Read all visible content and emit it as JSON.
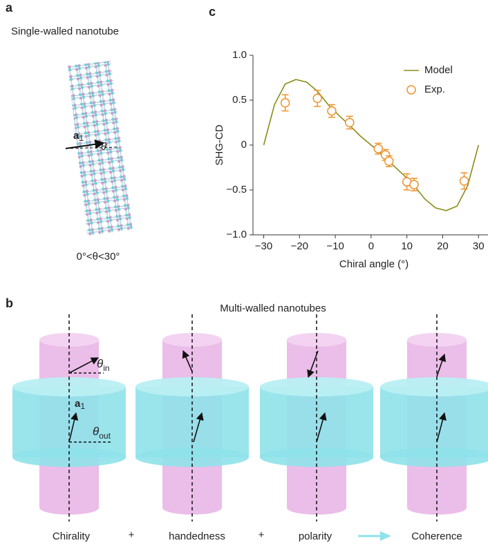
{
  "panel_a": {
    "label": "a",
    "title": "Single-walled nanotube",
    "vector": "a",
    "vector_sub": "1",
    "angle": "θ",
    "range": "0°<θ<30°"
  },
  "panel_b": {
    "label": "b",
    "title": "Multi-walled nanotubes",
    "vector": "a",
    "vector_sub": "1",
    "angle": "θ",
    "angle_in_sub": "in",
    "angle_out_sub": "out",
    "terms": [
      "Chirality",
      "+",
      "handedness",
      "+",
      "polarity",
      "Coherence"
    ]
  },
  "chart_data": {
    "type": "line",
    "panel_label": "c",
    "xlabel": "Chiral angle (°)",
    "ylabel": "SHG-CD",
    "xlim": [
      -33,
      31.5
    ],
    "ylim": [
      -1,
      1
    ],
    "xticks": [
      {
        "value": -30,
        "label": "−30"
      },
      {
        "value": -20,
        "label": "−20"
      },
      {
        "value": -10,
        "label": "−10"
      },
      0,
      10,
      20,
      30
    ],
    "yticks": [
      {
        "value": 1,
        "label": "1.0"
      },
      {
        "value": 0.5,
        "label": "0.5"
      },
      0,
      {
        "value": -0.5,
        "label": "−0.5"
      },
      {
        "value": -1,
        "label": "−1.0"
      }
    ],
    "legend": "upper right",
    "series": [
      {
        "name": "Model",
        "type": "line",
        "color": "#8b8b17",
        "x": [
          -30,
          -27,
          -24,
          -21,
          -18,
          -15,
          -12,
          -9,
          -6,
          -3,
          0,
          3,
          6,
          9,
          12,
          15,
          18,
          21,
          24,
          27,
          30
        ],
        "values": [
          0,
          0.45,
          0.68,
          0.73,
          0.7,
          0.6,
          0.45,
          0.33,
          0.22,
          0.1,
          0,
          -0.1,
          -0.22,
          -0.33,
          -0.45,
          -0.6,
          -0.7,
          -0.73,
          -0.68,
          -0.45,
          0
        ]
      },
      {
        "name": "Exp.",
        "type": "scatter",
        "color": "#f0922a",
        "x": [
          -24,
          -15,
          -11,
          -6,
          2,
          4,
          5,
          10,
          12,
          26
        ],
        "values": [
          0.47,
          0.52,
          0.38,
          0.25,
          -0.04,
          -0.11,
          -0.18,
          -0.41,
          -0.44,
          -0.4
        ],
        "errors": [
          0.09,
          0.09,
          0.07,
          0.07,
          0.06,
          0.06,
          0.06,
          0.09,
          0.07,
          0.09
        ]
      }
    ]
  }
}
